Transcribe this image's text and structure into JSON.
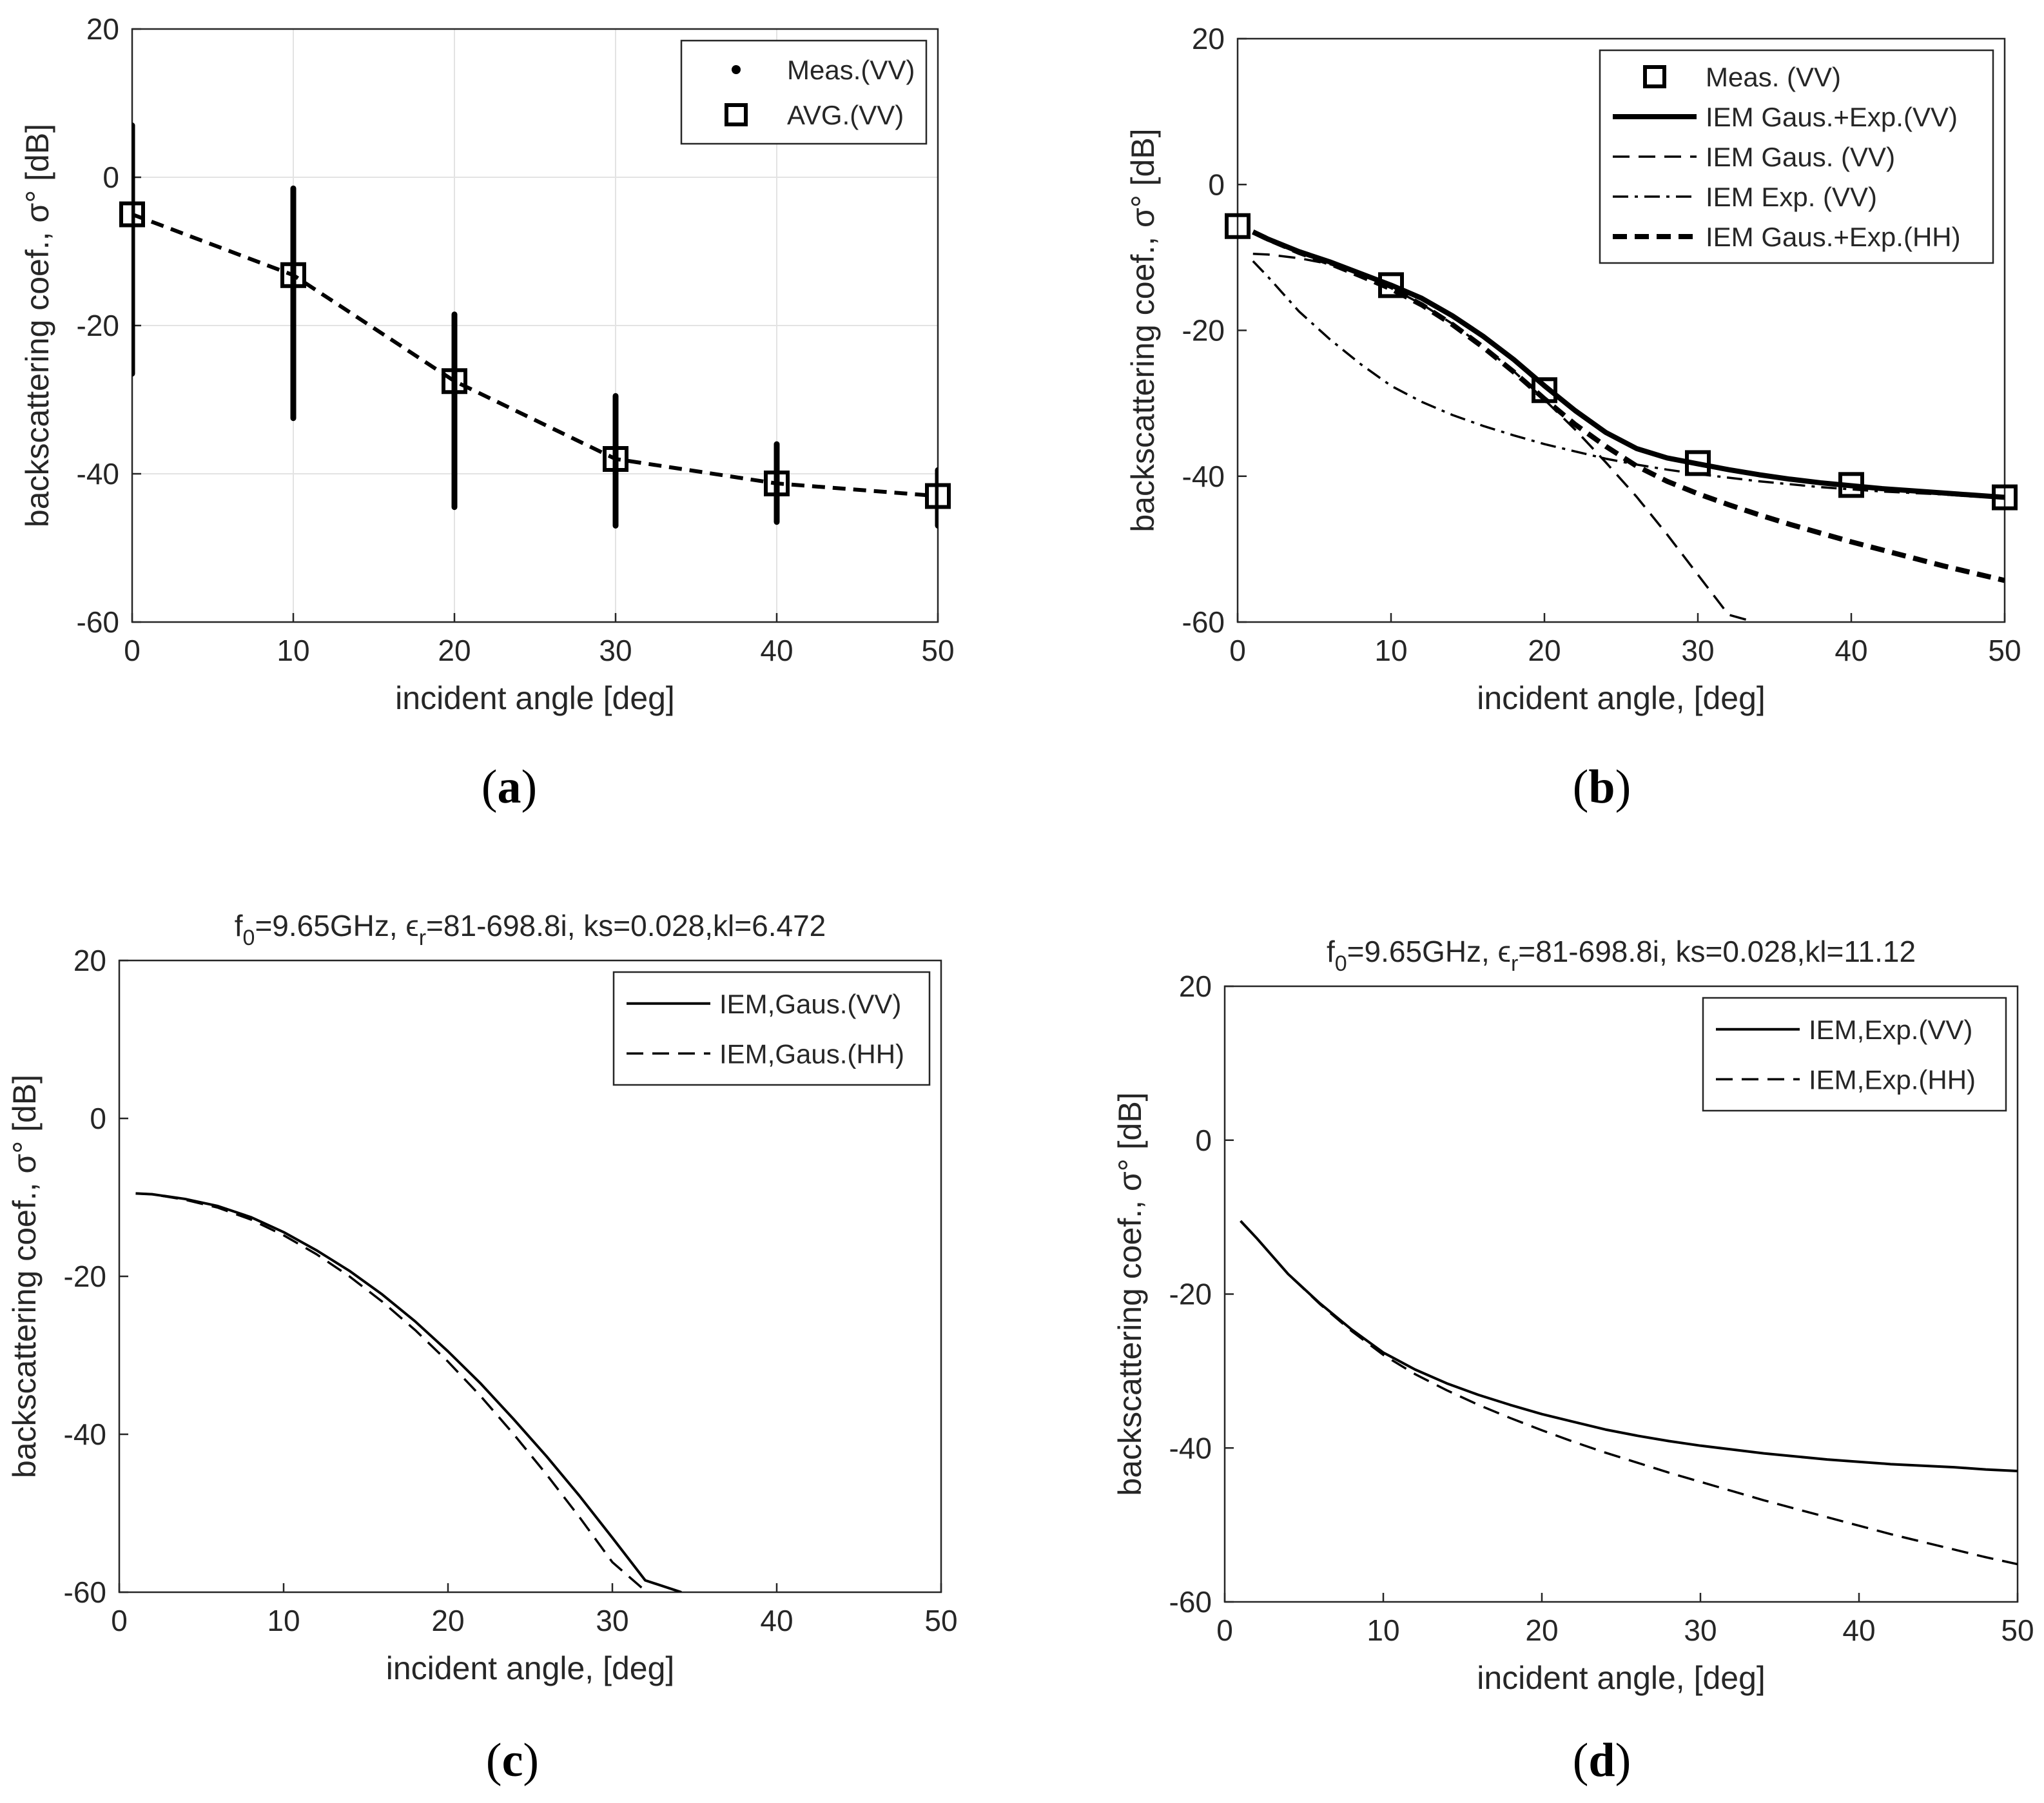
{
  "chart_data": [
    {
      "panel": "(a)",
      "panel_letter": "a",
      "type": "scatter",
      "title": "",
      "xlabel": "incident angle [deg]",
      "ylabel": "backscattering coef., σ° [dB]",
      "xlim": [
        0,
        50
      ],
      "ylim": [
        -60,
        20
      ],
      "xticks": [
        0,
        10,
        20,
        30,
        40,
        50
      ],
      "yticks": [
        -60,
        -40,
        -20,
        0,
        20
      ],
      "grid": true,
      "legend_position": "top-right",
      "series": [
        {
          "name": "Meas.(VV)",
          "style": "dots",
          "ranges": [
            {
              "x": 0,
              "ymin": -26.5,
              "ymax": 7
            },
            {
              "x": 10,
              "ymin": -32.5,
              "ymax": -1.5
            },
            {
              "x": 20,
              "ymin": -44.5,
              "ymax": -18.5
            },
            {
              "x": 30,
              "ymin": -47,
              "ymax": -29.5
            },
            {
              "x": 40,
              "ymin": -46.5,
              "ymax": -36
            },
            {
              "x": 50,
              "ymin": -47,
              "ymax": -39.5
            }
          ]
        },
        {
          "name": "AVG.(VV)",
          "style": "squares-dashed",
          "x": [
            0,
            10,
            20,
            30,
            40,
            50
          ],
          "y": [
            -5,
            -13.2,
            -27.5,
            -38,
            -41.3,
            -43
          ]
        }
      ]
    },
    {
      "panel": "(b)",
      "panel_letter": "b",
      "type": "line",
      "title": "",
      "xlabel": "incident angle, [deg]",
      "ylabel": "backscattering coef., σ° [dB]",
      "xlim": [
        0,
        50
      ],
      "ylim": [
        -60,
        20
      ],
      "xticks": [
        0,
        10,
        20,
        30,
        40,
        50
      ],
      "yticks": [
        -60,
        -40,
        -20,
        0,
        20
      ],
      "grid": false,
      "legend_position": "top-right",
      "series": [
        {
          "name": "Meas. (VV)",
          "style": "squares",
          "x": [
            0,
            10,
            20,
            30,
            40,
            50
          ],
          "y": [
            -5.7,
            -13.8,
            -28.2,
            -38.2,
            -41.2,
            -42.9
          ]
        },
        {
          "name": "IEM Gaus.+Exp.(VV)",
          "style": "solid-thick",
          "x": [
            1,
            2,
            4,
            6,
            8,
            10,
            12,
            14,
            16,
            18,
            20,
            22,
            24,
            26,
            28,
            30,
            32,
            34,
            36,
            38,
            40,
            42,
            44,
            46,
            48,
            50
          ],
          "y": [
            -6.5,
            -7.5,
            -9.2,
            -10.6,
            -12.2,
            -13.8,
            -15.6,
            -18,
            -20.8,
            -24,
            -27.6,
            -31,
            -34,
            -36.2,
            -37.5,
            -38.3,
            -39.1,
            -39.8,
            -40.4,
            -40.9,
            -41.3,
            -41.7,
            -42,
            -42.3,
            -42.6,
            -42.9
          ]
        },
        {
          "name": "IEM Gaus. (VV)",
          "style": "dashed-thin",
          "x": [
            1,
            2,
            4,
            6,
            8,
            10,
            12,
            14,
            16,
            18,
            20,
            22,
            24,
            26,
            28,
            30,
            32,
            33.7
          ],
          "y": [
            -9.5,
            -9.6,
            -10.1,
            -10.9,
            -12.3,
            -14.2,
            -16.4,
            -19.1,
            -22.2,
            -25.6,
            -29.5,
            -33.6,
            -38.1,
            -42.8,
            -48,
            -53.5,
            -59,
            -60
          ]
        },
        {
          "name": "IEM Exp. (VV)",
          "style": "dashdot-thin",
          "x": [
            1,
            2,
            4,
            6,
            8,
            10,
            12,
            14,
            16,
            18,
            20,
            22,
            24,
            26,
            28,
            30,
            32,
            34,
            36,
            38,
            40,
            42,
            44,
            46,
            48,
            50
          ],
          "y": [
            -10.5,
            -12.7,
            -17.4,
            -21.2,
            -24.6,
            -27.6,
            -29.8,
            -31.6,
            -33.1,
            -34.4,
            -35.6,
            -36.6,
            -37.6,
            -38.4,
            -39.1,
            -39.7,
            -40.2,
            -40.7,
            -41.1,
            -41.5,
            -41.8,
            -42.1,
            -42.3,
            -42.5,
            -42.8,
            -43
          ]
        },
        {
          "name": "IEM Gaus.+Exp.(HH)",
          "style": "dashed-thick",
          "x": [
            1,
            2,
            4,
            6,
            8,
            10,
            12,
            14,
            16,
            18,
            20,
            22,
            24,
            26,
            28,
            30,
            32,
            34,
            36,
            38,
            40,
            42,
            44,
            46,
            48,
            50
          ],
          "y": [
            -6.5,
            -7.5,
            -9.3,
            -10.8,
            -12.5,
            -14.3,
            -16.5,
            -19.2,
            -22.3,
            -25.7,
            -29.4,
            -32.9,
            -35.9,
            -38.6,
            -40.7,
            -42.4,
            -43.9,
            -45.3,
            -46.6,
            -47.8,
            -49,
            -50.1,
            -51.2,
            -52.3,
            -53.3,
            -54.3
          ]
        }
      ]
    },
    {
      "panel": "(c)",
      "panel_letter": "c",
      "type": "line",
      "title": "f0=9.65GHz, εr=81-698.8i, ks=0.028,kl=6.472",
      "title_parts": {
        "f": "f",
        "f_sub": "0",
        "freq": "=9.65GHz, ",
        "eps": "ϵ",
        "eps_sub": "r",
        "rest": "=81-698.8i, ks=0.028,kl=6.472"
      },
      "xlabel": "incident angle, [deg]",
      "ylabel": "backscattering coef., σ° [dB]",
      "xlim": [
        0,
        50
      ],
      "ylim": [
        -60,
        20
      ],
      "xticks": [
        0,
        10,
        20,
        30,
        40,
        50
      ],
      "yticks": [
        -60,
        -40,
        -20,
        0,
        20
      ],
      "grid": false,
      "legend_position": "top-right",
      "series": [
        {
          "name": "IEM,Gaus.(VV)",
          "style": "solid-thin",
          "x": [
            1,
            2,
            4,
            6,
            8,
            10,
            12,
            14,
            16,
            18,
            20,
            22,
            24,
            26,
            28,
            30,
            32,
            34.2
          ],
          "y": [
            -9.5,
            -9.6,
            -10.2,
            -11.1,
            -12.5,
            -14.4,
            -16.7,
            -19.3,
            -22.3,
            -25.7,
            -29.5,
            -33.6,
            -38.1,
            -42.8,
            -47.8,
            -53.1,
            -58.5,
            -60
          ]
        },
        {
          "name": "IEM,Gaus.(HH)",
          "style": "dashed-thin",
          "x": [
            1,
            2,
            4,
            6,
            8,
            10,
            12,
            14,
            16,
            18,
            20,
            22,
            24,
            26,
            28,
            30,
            32.1
          ],
          "y": [
            -9.5,
            -9.6,
            -10.3,
            -11.3,
            -12.8,
            -14.8,
            -17.2,
            -20,
            -23.2,
            -26.8,
            -30.8,
            -35.2,
            -40,
            -45.1,
            -50.5,
            -56.2,
            -60
          ]
        }
      ]
    },
    {
      "panel": "(d)",
      "panel_letter": "d",
      "type": "line",
      "title": "f0=9.65GHz, εr=81-698.8i, ks=0.028,kl=11.12",
      "title_parts": {
        "f": "f",
        "f_sub": "0",
        "freq": "=9.65GHz, ",
        "eps": "ϵ",
        "eps_sub": "r",
        "rest": "=81-698.8i, ks=0.028,kl=11.12"
      },
      "xlabel": "incident angle, [deg]",
      "ylabel": "backscattering coef., σ° [dB]",
      "xlim": [
        0,
        50
      ],
      "ylim": [
        -60,
        20
      ],
      "xticks": [
        0,
        10,
        20,
        30,
        40,
        50
      ],
      "yticks": [
        -60,
        -40,
        -20,
        0,
        20
      ],
      "grid": false,
      "legend_position": "top-right",
      "series": [
        {
          "name": "IEM,Exp.(VV)",
          "style": "solid-thin",
          "x": [
            1,
            2,
            4,
            6,
            8,
            10,
            12,
            14,
            16,
            18,
            20,
            22,
            24,
            26,
            28,
            30,
            32,
            34,
            36,
            38,
            40,
            42,
            44,
            46,
            48,
            50
          ],
          "y": [
            -10.5,
            -12.7,
            -17.4,
            -21.2,
            -24.6,
            -27.6,
            -29.8,
            -31.6,
            -33.1,
            -34.4,
            -35.6,
            -36.6,
            -37.6,
            -38.4,
            -39.1,
            -39.7,
            -40.2,
            -40.7,
            -41.1,
            -41.5,
            -41.8,
            -42.1,
            -42.3,
            -42.5,
            -42.8,
            -43
          ]
        },
        {
          "name": "IEM,Exp.(HH)",
          "style": "dashed-thin",
          "x": [
            1,
            2,
            4,
            6,
            8,
            10,
            12,
            14,
            16,
            18,
            20,
            22,
            24,
            26,
            28,
            30,
            32,
            34,
            36,
            38,
            40,
            42,
            44,
            46,
            48,
            50
          ],
          "y": [
            -10.5,
            -12.7,
            -17.4,
            -21.3,
            -24.8,
            -27.9,
            -30.4,
            -32.5,
            -34.4,
            -36.1,
            -37.7,
            -39.2,
            -40.6,
            -41.9,
            -43.2,
            -44.4,
            -45.6,
            -46.8,
            -47.9,
            -49,
            -50.1,
            -51.2,
            -52.2,
            -53.2,
            -54.2,
            -55.1
          ]
        }
      ]
    }
  ]
}
